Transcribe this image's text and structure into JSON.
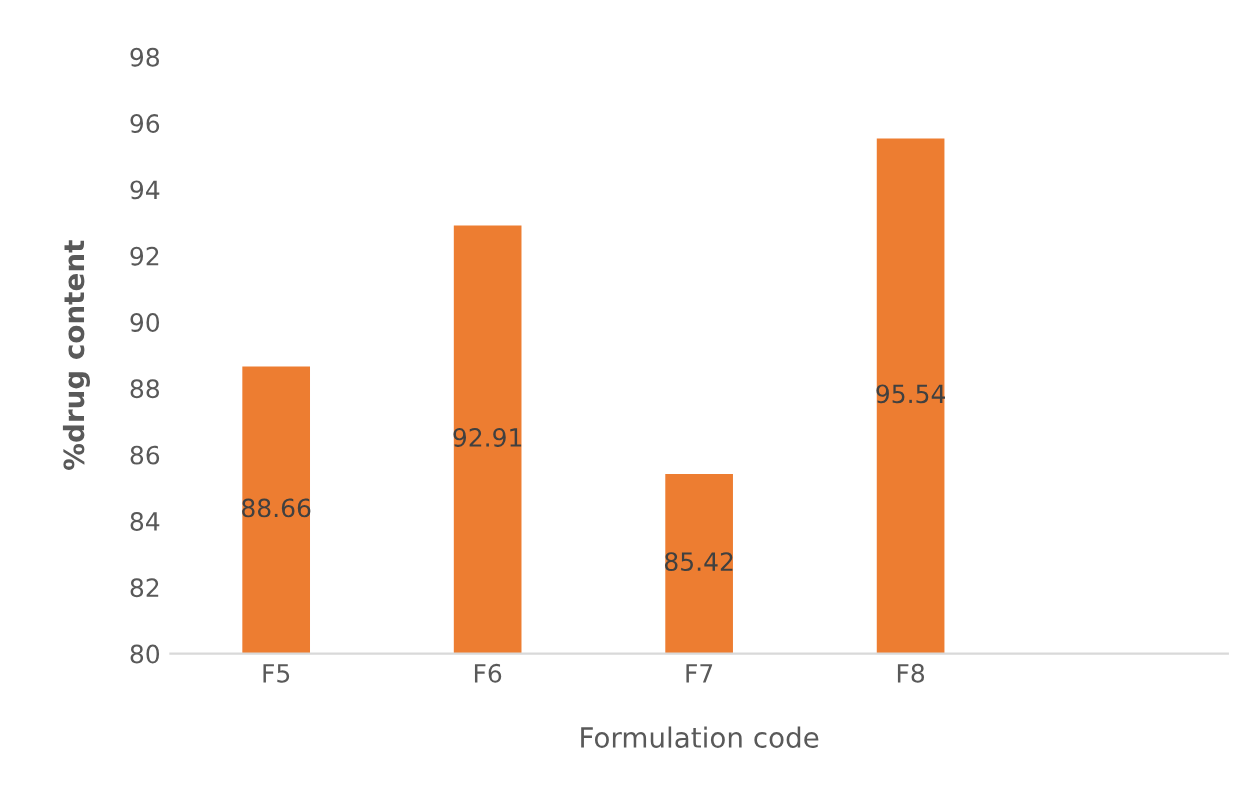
{
  "chart_data": {
    "type": "bar",
    "xlabel": "Formulation code",
    "ylabel": "%drug content",
    "categories": [
      "F5",
      "F6",
      "F7",
      "F8",
      null
    ],
    "values": [
      88.66,
      92.91,
      85.42,
      95.54,
      null
    ],
    "color": "#ed7d31",
    "ylim": [
      80,
      98
    ],
    "yticks": [
      80,
      82,
      84,
      86,
      88,
      90,
      92,
      94,
      96,
      98
    ],
    "grid": false,
    "data_labels": true
  }
}
